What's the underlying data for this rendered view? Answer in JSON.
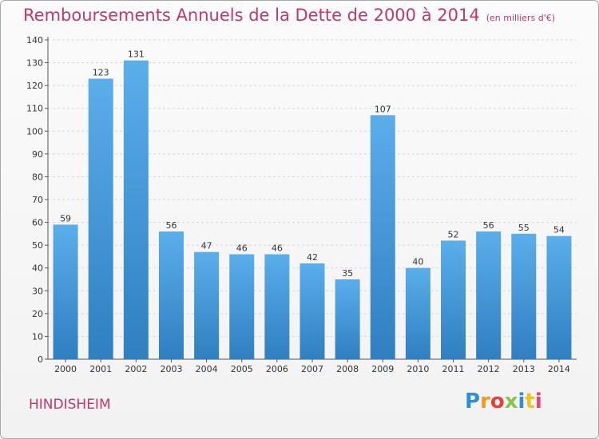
{
  "chart_data": {
    "type": "bar",
    "title": "Remboursements Annuels de la Dette de 2000 à 2014",
    "subtitle": "(en milliers d'€)",
    "xlabel": "",
    "ylabel": "",
    "categories": [
      "2000",
      "2001",
      "2002",
      "2003",
      "2004",
      "2005",
      "2006",
      "2007",
      "2008",
      "2009",
      "2010",
      "2011",
      "2012",
      "2013",
      "2014"
    ],
    "values": [
      59,
      123,
      131,
      56,
      47,
      46,
      46,
      42,
      35,
      107,
      40,
      52,
      56,
      55,
      54
    ],
    "ylim": [
      0,
      140
    ],
    "yticks": [
      0,
      10,
      20,
      30,
      40,
      50,
      60,
      70,
      80,
      90,
      100,
      110,
      120,
      130,
      140
    ],
    "grid": "horizontal dashed",
    "legend": "none",
    "bar_color_top": "#5aaeea",
    "bar_color_bottom": "#2f7fc1",
    "title_color": "#c2386a"
  },
  "footer": {
    "location": "HINDISHEIM",
    "logo_text": "Proxiti",
    "logo_colors": [
      "#2e8fd4",
      "#f29a1e",
      "#e83e3e",
      "#8bc34a",
      "#2e8fd4",
      "#f2c21e",
      "#e8407a"
    ]
  }
}
